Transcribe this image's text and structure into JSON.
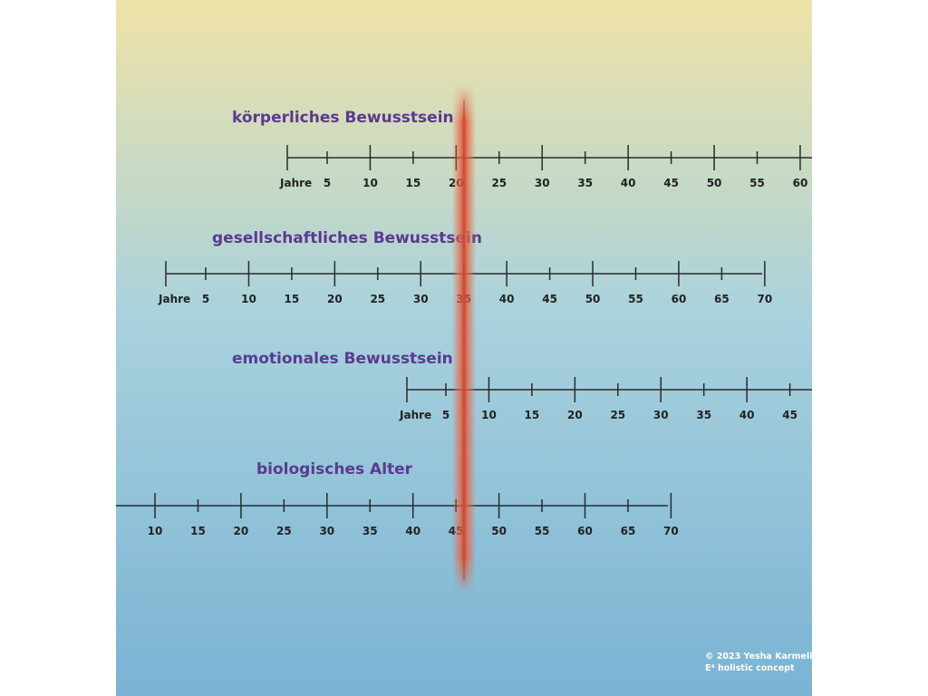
{
  "colors": {
    "background_top": "#efe3a6",
    "background_mid": "#a9d2dd",
    "background_bottom": "#7ab3d4",
    "title_color": "#5a3a90",
    "axis_color": "#2a2a2a",
    "marker_color": "#e56a4a"
  },
  "scales": [
    {
      "title": "körperliches Bewusstsein",
      "unit_label": "Jahre",
      "ticks": [
        {
          "label": "5",
          "major": false
        },
        {
          "label": "10",
          "major": true
        },
        {
          "label": "15",
          "major": false
        },
        {
          "label": "20",
          "major": true
        },
        {
          "label": "25",
          "major": false
        },
        {
          "label": "30",
          "major": true
        },
        {
          "label": "35",
          "major": false
        },
        {
          "label": "40",
          "major": true
        },
        {
          "label": "45",
          "major": false
        },
        {
          "label": "50",
          "major": true
        },
        {
          "label": "55",
          "major": false
        },
        {
          "label": "60",
          "major": true
        }
      ]
    },
    {
      "title": "gesellschaftliches Bewusstsein",
      "unit_label": "Jahre",
      "ticks": [
        {
          "label": "5",
          "major": false
        },
        {
          "label": "10",
          "major": true
        },
        {
          "label": "15",
          "major": false
        },
        {
          "label": "20",
          "major": true
        },
        {
          "label": "25",
          "major": false
        },
        {
          "label": "30",
          "major": true
        },
        {
          "label": "35",
          "major": false
        },
        {
          "label": "40",
          "major": true
        },
        {
          "label": "45",
          "major": false
        },
        {
          "label": "50",
          "major": true
        },
        {
          "label": "55",
          "major": false
        },
        {
          "label": "60",
          "major": true
        },
        {
          "label": "65",
          "major": false
        },
        {
          "label": "70",
          "major": true
        }
      ]
    },
    {
      "title": "emotionales Bewusstsein",
      "unit_label": "Jahre",
      "ticks": [
        {
          "label": "5",
          "major": false
        },
        {
          "label": "10",
          "major": true
        },
        {
          "label": "15",
          "major": false
        },
        {
          "label": "20",
          "major": true
        },
        {
          "label": "25",
          "major": false
        },
        {
          "label": "30",
          "major": true
        },
        {
          "label": "35",
          "major": false
        },
        {
          "label": "40",
          "major": true
        },
        {
          "label": "45",
          "major": false
        }
      ]
    },
    {
      "title": "biologisches Alter",
      "unit_label": "",
      "ticks": [
        {
          "label": "10",
          "major": true
        },
        {
          "label": "15",
          "major": false
        },
        {
          "label": "20",
          "major": true
        },
        {
          "label": "25",
          "major": false
        },
        {
          "label": "30",
          "major": true
        },
        {
          "label": "35",
          "major": false
        },
        {
          "label": "40",
          "major": true
        },
        {
          "label": "45",
          "major": false
        },
        {
          "label": "50",
          "major": true
        },
        {
          "label": "55",
          "major": false
        },
        {
          "label": "60",
          "major": true
        },
        {
          "label": "65",
          "major": false
        },
        {
          "label": "70",
          "major": true
        }
      ]
    }
  ],
  "credit": {
    "line1": "© 2023 Yesha Karmeli",
    "line2": "E⁴ holistic concept"
  }
}
